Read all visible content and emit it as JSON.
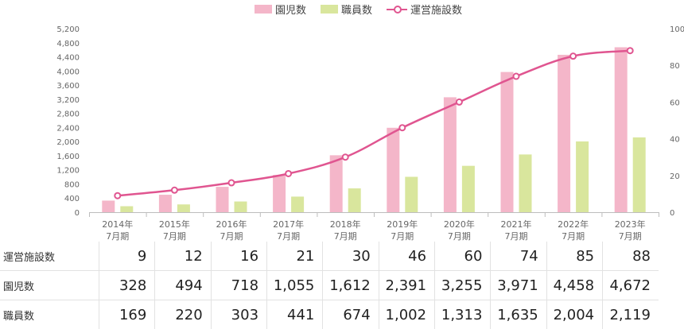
{
  "chart_data": {
    "type": "bar",
    "categories": [
      [
        "2014年",
        "7月期"
      ],
      [
        "2015年",
        "7月期"
      ],
      [
        "2016年",
        "7月期"
      ],
      [
        "2017年",
        "7月期"
      ],
      [
        "2018年",
        "7月期"
      ],
      [
        "2019年",
        "7月期"
      ],
      [
        "2020年",
        "7月期"
      ],
      [
        "2021年",
        "7月期"
      ],
      [
        "2022年",
        "7月期"
      ],
      [
        "2023年",
        "7月期"
      ]
    ],
    "series": [
      {
        "name": "園児数",
        "type": "bar",
        "axis": "left",
        "color": "#f4b6c9",
        "values": [
          328,
          494,
          718,
          1055,
          1612,
          2391,
          3255,
          3971,
          4458,
          4672
        ]
      },
      {
        "name": "職員数",
        "type": "bar",
        "axis": "left",
        "color": "#d9e69d",
        "values": [
          169,
          220,
          303,
          441,
          674,
          1002,
          1313,
          1635,
          2004,
          2119
        ]
      },
      {
        "name": "運営施設数",
        "type": "line",
        "axis": "right",
        "color": "#e05590",
        "values": [
          9,
          12,
          16,
          21,
          30,
          46,
          60,
          74,
          85,
          88
        ]
      }
    ],
    "y_left": {
      "min": 0,
      "max": 5200,
      "ticks": [
        0,
        400,
        800,
        1200,
        1600,
        2000,
        2400,
        2800,
        3200,
        3600,
        4000,
        4400,
        4800,
        5200
      ]
    },
    "y_right": {
      "min": 0,
      "max": 100,
      "ticks": [
        0,
        20,
        40,
        60,
        80,
        100
      ]
    },
    "grid": false,
    "legend": "top-center"
  },
  "legend": [
    {
      "label": "園児数",
      "kind": "bar",
      "color": "#f4b6c9"
    },
    {
      "label": "職員数",
      "kind": "bar",
      "color": "#d9e69d"
    },
    {
      "label": "運営施設数",
      "kind": "line",
      "color": "#e05590"
    }
  ],
  "table": {
    "rows": [
      {
        "label": "運営施設数",
        "values": [
          "9",
          "12",
          "16",
          "21",
          "30",
          "46",
          "60",
          "74",
          "85",
          "88"
        ]
      },
      {
        "label": "園児数",
        "values": [
          "328",
          "494",
          "718",
          "1,055",
          "1,612",
          "2,391",
          "3,255",
          "3,971",
          "4,458",
          "4,672"
        ]
      },
      {
        "label": "職員数",
        "values": [
          "169",
          "220",
          "303",
          "441",
          "674",
          "1,002",
          "1,313",
          "1,635",
          "2,004",
          "2,119"
        ]
      }
    ]
  }
}
